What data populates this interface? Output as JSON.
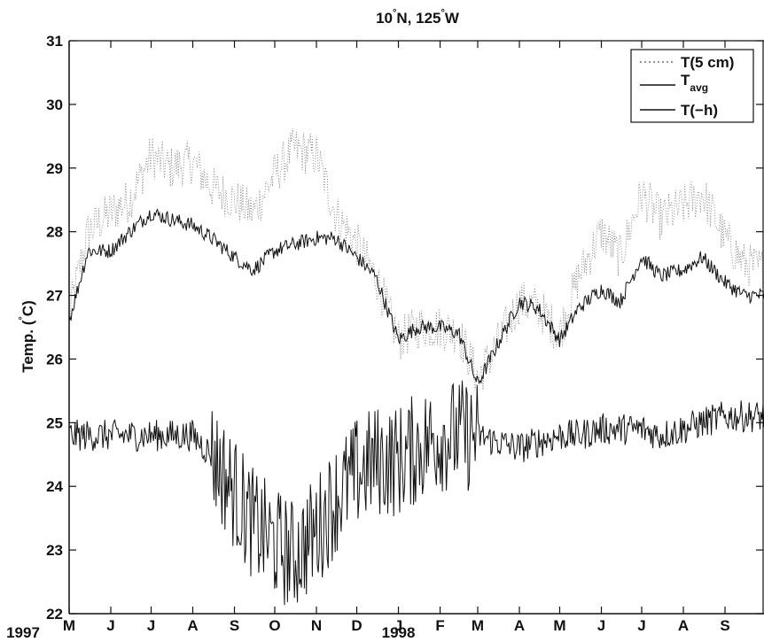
{
  "chart_data": {
    "type": "line",
    "title_lat": "10",
    "title_comma": "N, 125",
    "title_dir": "W",
    "ylabel_pre": "Temp. (",
    "ylabel_post": "C)",
    "ylim": [
      22,
      31
    ],
    "yticks": [
      "22",
      "23",
      "24",
      "25",
      "26",
      "27",
      "28",
      "29",
      "30",
      "31"
    ],
    "xlim": [
      "1997-05-01",
      "1998-09-30"
    ],
    "months": [
      "M",
      "J",
      "J",
      "A",
      "S",
      "O",
      "N",
      "D",
      "J",
      "F",
      "M",
      "A",
      "M",
      "J",
      "J",
      "A",
      "S"
    ],
    "years": [
      "1997",
      "1998"
    ],
    "grid": false,
    "legend_position": "top-right",
    "legend": [
      {
        "label": "T(5 cm)",
        "style": "dotted"
      },
      {
        "label": "T",
        "sub": "avg",
        "style": "solid"
      },
      {
        "label": "T(−h)",
        "style": "solid"
      }
    ],
    "series": [
      {
        "name": "T(5 cm)",
        "x": [
          "1997-05-01",
          "1997-05-15",
          "1997-06-01",
          "1997-06-15",
          "1997-07-01",
          "1997-07-15",
          "1997-08-01",
          "1997-08-15",
          "1997-09-01",
          "1997-09-15",
          "1997-10-01",
          "1997-10-15",
          "1997-11-01",
          "1997-11-15",
          "1997-12-01",
          "1997-12-15",
          "1998-01-01",
          "1998-01-15",
          "1998-02-01",
          "1998-02-15",
          "1998-03-01",
          "1998-03-15",
          "1998-04-01",
          "1998-04-15",
          "1998-05-01",
          "1998-05-15",
          "1998-06-01",
          "1998-06-15",
          "1998-07-01",
          "1998-07-15",
          "1998-08-01",
          "1998-08-15",
          "1998-09-01",
          "1998-09-15",
          "1998-09-30"
        ],
        "y": [
          26.7,
          28.0,
          28.3,
          28.5,
          29.2,
          29.0,
          29.1,
          28.7,
          28.5,
          28.3,
          28.9,
          29.3,
          29.2,
          28.3,
          27.8,
          27.3,
          26.3,
          26.5,
          26.5,
          26.4,
          25.7,
          26.2,
          26.9,
          26.8,
          26.4,
          27.3,
          28.0,
          27.6,
          28.6,
          28.2,
          28.4,
          28.6,
          27.9,
          27.5,
          27.4
        ]
      },
      {
        "name": "T avg",
        "x": [
          "1997-05-01",
          "1997-05-15",
          "1997-06-01",
          "1997-06-15",
          "1997-07-01",
          "1997-07-15",
          "1997-08-01",
          "1997-08-15",
          "1997-09-01",
          "1997-09-15",
          "1997-10-01",
          "1997-10-15",
          "1997-11-01",
          "1997-11-15",
          "1997-12-01",
          "1997-12-15",
          "1998-01-01",
          "1998-01-15",
          "1998-02-01",
          "1998-02-15",
          "1998-03-01",
          "1998-03-15",
          "1998-04-01",
          "1998-04-15",
          "1998-05-01",
          "1998-05-15",
          "1998-06-01",
          "1998-06-15",
          "1998-07-01",
          "1998-07-15",
          "1998-08-01",
          "1998-08-15",
          "1998-09-01",
          "1998-09-15",
          "1998-09-30"
        ],
        "y": [
          26.6,
          27.7,
          27.7,
          28.0,
          28.3,
          28.2,
          28.1,
          27.9,
          27.6,
          27.4,
          27.7,
          27.8,
          27.9,
          27.9,
          27.6,
          27.3,
          26.3,
          26.5,
          26.5,
          26.4,
          25.6,
          26.2,
          26.9,
          26.8,
          26.3,
          26.8,
          27.1,
          26.9,
          27.6,
          27.3,
          27.4,
          27.6,
          27.2,
          27.0,
          27.0
        ]
      },
      {
        "name": "T(−h)",
        "x": [
          "1997-05-01",
          "1997-05-15",
          "1997-06-01",
          "1997-06-15",
          "1997-07-01",
          "1997-07-15",
          "1997-08-01",
          "1997-08-15",
          "1997-09-01",
          "1997-09-15",
          "1997-10-01",
          "1997-10-15",
          "1997-11-01",
          "1997-11-15",
          "1997-12-01",
          "1997-12-15",
          "1998-01-01",
          "1998-01-15",
          "1998-02-01",
          "1998-02-15",
          "1998-03-01",
          "1998-03-15",
          "1998-04-01",
          "1998-04-15",
          "1998-05-01",
          "1998-05-15",
          "1998-06-01",
          "1998-06-15",
          "1998-07-01",
          "1998-07-15",
          "1998-08-01",
          "1998-08-15",
          "1998-09-01",
          "1998-09-15",
          "1998-09-30"
        ],
        "y": [
          24.8,
          24.8,
          24.8,
          24.8,
          24.8,
          24.8,
          24.8,
          24.5,
          23.9,
          23.4,
          23.1,
          22.9,
          23.3,
          23.8,
          24.2,
          24.4,
          24.4,
          24.6,
          24.8,
          24.8,
          24.8,
          24.7,
          24.6,
          24.7,
          24.8,
          24.8,
          24.9,
          24.9,
          24.9,
          24.8,
          24.9,
          25.0,
          25.1,
          25.1,
          25.1
        ]
      }
    ]
  }
}
